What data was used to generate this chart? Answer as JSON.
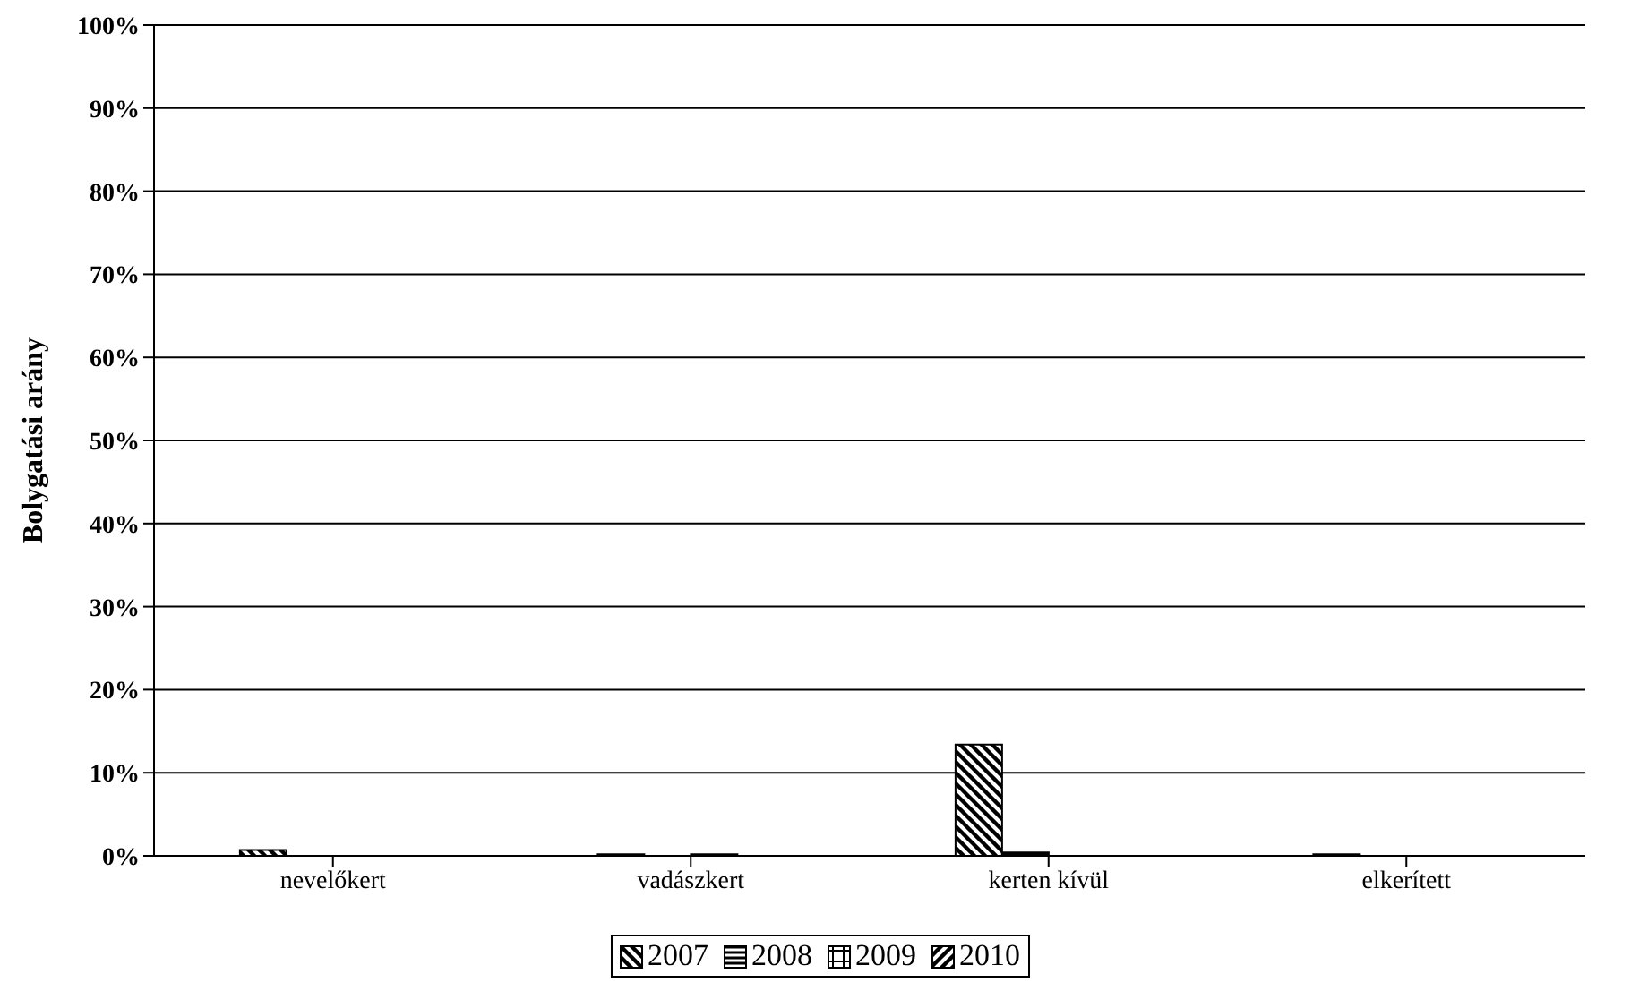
{
  "chart_data": {
    "type": "bar",
    "ylabel": "Bolygatási arány",
    "categories": [
      "nevelőkert",
      "vadászkert",
      "kerten kívül",
      "elkerített"
    ],
    "series": [
      {
        "name": "2007",
        "color": "#000000",
        "values": [
          0.7,
          0.2,
          13.4,
          0.2
        ]
      },
      {
        "name": "2008",
        "color": "#000000",
        "values": [
          0,
          0,
          0.4,
          0
        ]
      },
      {
        "name": "2009",
        "color": "#000000",
        "values": [
          0,
          0.2,
          0,
          0
        ]
      },
      {
        "name": "2010",
        "color": "#000000",
        "values": [
          0,
          0,
          0,
          0
        ]
      }
    ],
    "ylim": [
      0,
      100
    ],
    "yticks": [
      {
        "value": 0,
        "label": "0%"
      },
      {
        "value": 10,
        "label": "10%"
      },
      {
        "value": 20,
        "label": "20%"
      },
      {
        "value": 30,
        "label": "30%"
      },
      {
        "value": 40,
        "label": "40%"
      },
      {
        "value": 50,
        "label": "50%"
      },
      {
        "value": 60,
        "label": "60%"
      },
      {
        "value": 70,
        "label": "70%"
      },
      {
        "value": 80,
        "label": "80%"
      },
      {
        "value": 90,
        "label": "90%"
      },
      {
        "value": 100,
        "label": "100%"
      }
    ],
    "grid": "y",
    "legend": "bottom"
  }
}
